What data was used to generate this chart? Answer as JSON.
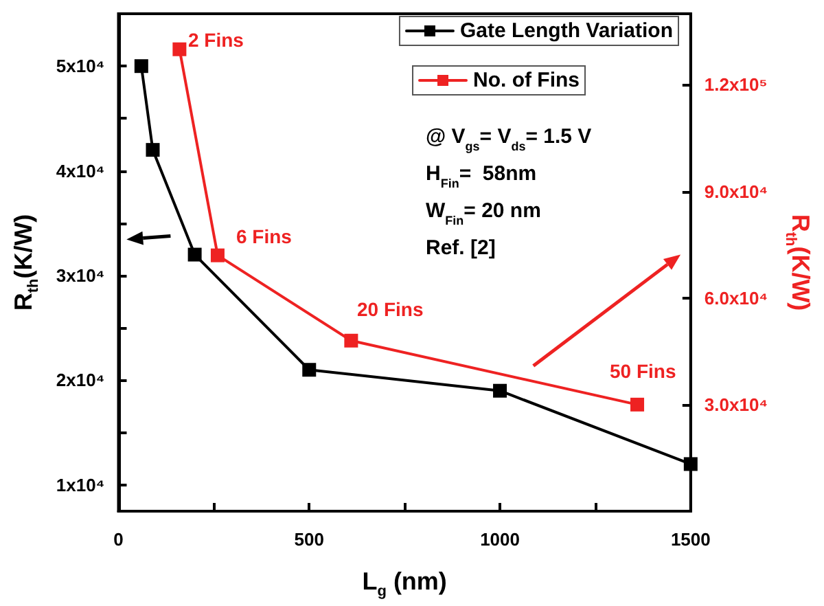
{
  "chart_data": {
    "type": "line",
    "xlabel": "L$_{g}$ (nm)",
    "ylabel": "R$_{th}$(K/W)",
    "y2label": "R$_{th}$(K/W)",
    "series": [
      {
        "name": "Gate Length Variation",
        "color": "#000000",
        "x": [
          60,
          90,
          200,
          500,
          1000,
          1500
        ],
        "values": [
          50000,
          42000,
          32000,
          21000,
          19000,
          12000
        ]
      },
      {
        "name": "No. of Fins",
        "color": "#ee2222",
        "axis": "y2",
        "x": [
          160,
          260,
          610,
          1360
        ],
        "values": [
          130000,
          72000,
          48000,
          30000
        ]
      }
    ],
    "xlim": [
      0,
      1500
    ],
    "xticks": [
      0,
      {
        "value": 250,
        "label": null
      },
      500,
      {
        "value": 750,
        "label": null
      },
      1000,
      {
        "value": 1250,
        "label": null
      },
      1500
    ],
    "ylim": [
      7500,
      55000
    ],
    "yticks": [
      {
        "value": 10000,
        "label": "1x10⁴"
      },
      {
        "value": 15000,
        "label": null
      },
      {
        "value": 20000,
        "label": "2x10⁴"
      },
      {
        "value": 25000,
        "label": null
      },
      {
        "value": 30000,
        "label": "3x10⁴"
      },
      {
        "value": 35000,
        "label": null
      },
      {
        "value": 40000,
        "label": "4x10⁴"
      },
      {
        "value": 45000,
        "label": null
      },
      {
        "value": 50000,
        "label": "5x10⁴"
      }
    ],
    "y2lim": [
      0,
      140000
    ],
    "y2ticks": [
      {
        "value": 30000,
        "label": "3.0x10⁴"
      },
      {
        "value": 60000,
        "label": "6.0x10⁴"
      },
      {
        "value": 90000,
        "label": "9.0x10⁴"
      },
      {
        "value": 120000,
        "label": "1.2x10⁵"
      }
    ],
    "annotations": [
      "2 Fins",
      "6 Fins",
      "20 Fins",
      "50 Fins",
      "@ V$_{gs}$= V$_{ds}$= 1.5 V",
      "H$_{Fin}$=  58nm",
      "W$_{Fin}$= 20 nm",
      "Ref. [2]"
    ],
    "legend": "top right",
    "grid": false,
    "marker": "square",
    "line_style": "solid"
  }
}
